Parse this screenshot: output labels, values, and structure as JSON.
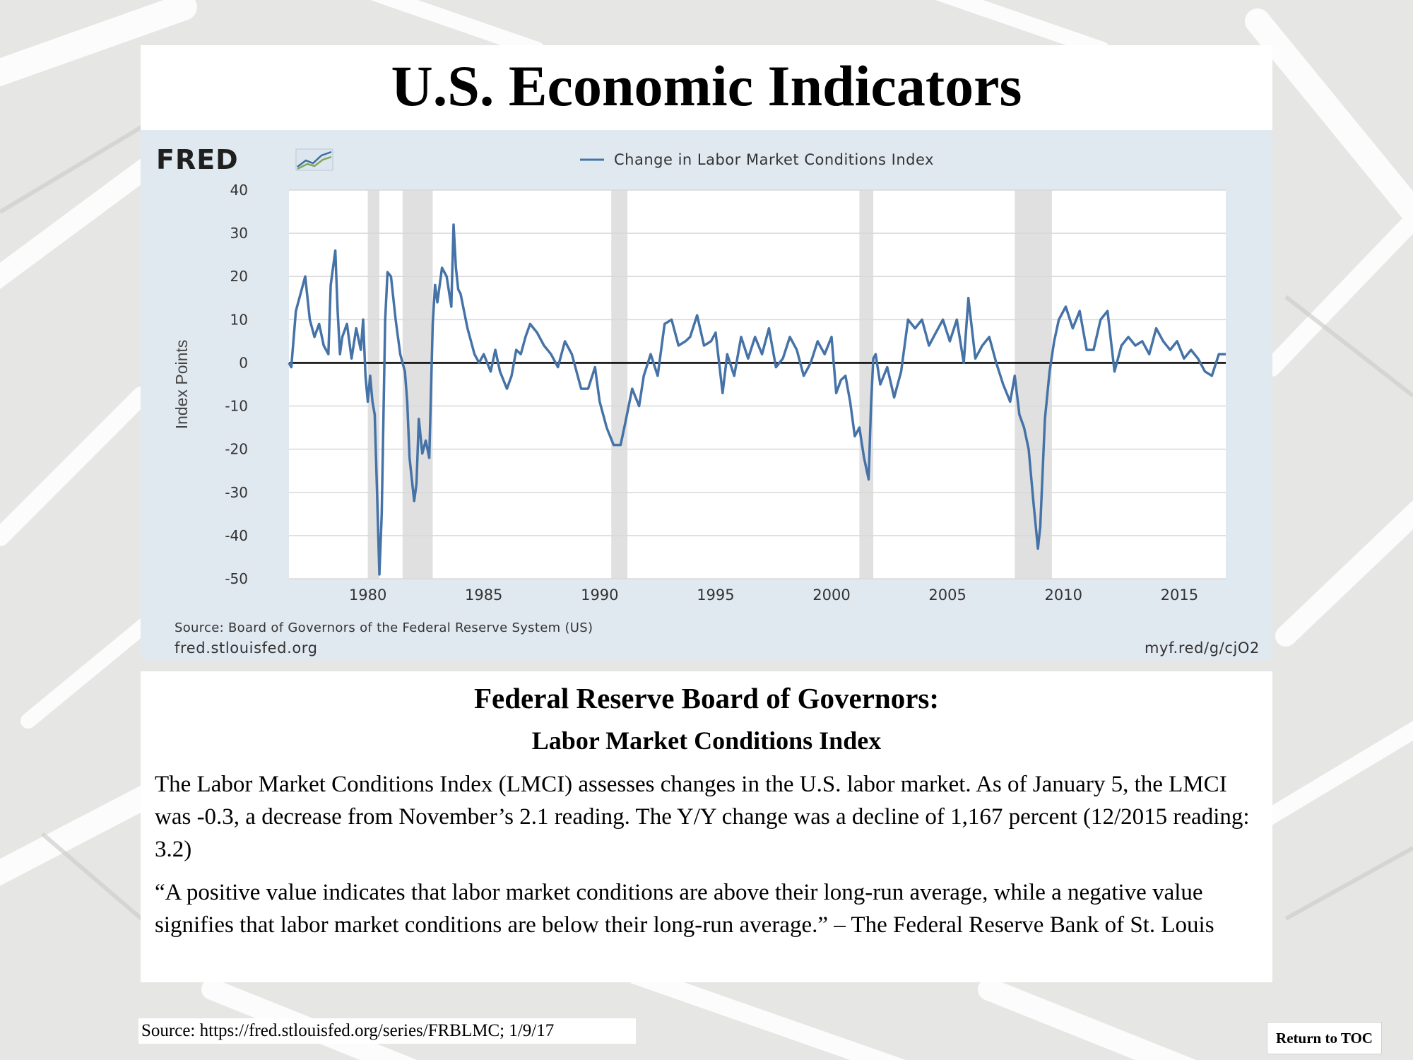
{
  "page": {
    "title": "U.S. Economic Indicators",
    "heading": "Federal Reserve Board of Governors:",
    "subheading": "Labor Market Conditions Index",
    "paragraph_1": "The Labor Market Conditions Index (LMCI) assesses changes in the U.S. labor market.  As of January 5, the LMCI was -0.3, a decrease from November’s 2.1 reading.  The Y/Y change was a decline of 1,167 percent (12/2015 reading: 3.2)",
    "paragraph_2": "“A positive value indicates that labor market conditions are above their long-run average, while a negative value signifies that labor market conditions are below their long-run average.” – The Federal Reserve Bank of St. Louis",
    "source": "Source: https://fred.stlouisfed.org/series/FRBLMC; 1/9/17",
    "toc_button": "Return to TOC"
  },
  "chart_header": {
    "logo_text": "FRED",
    "logo_icon": "fred-graph-icon",
    "source_line": "Source: Board of Governors of the Federal Reserve System (US)",
    "site": "fred.stlouisfed.org",
    "short_url": "myf.red/g/cjO2"
  },
  "colors": {
    "series": "#4572a7",
    "recession": "#e0e0e0",
    "chart_bg": "#e1e9f0",
    "zero_line": "#000000"
  },
  "chart_data": {
    "type": "line",
    "title": "",
    "xlabel": "",
    "ylabel": "Index Points",
    "xlim": [
      1976.6,
      2017.0
    ],
    "ylim": [
      -50,
      40
    ],
    "y_ticks": [
      40,
      30,
      20,
      10,
      0,
      -10,
      -20,
      -30,
      -40,
      -50
    ],
    "x_ticks": [
      1980,
      1985,
      1990,
      1995,
      2000,
      2005,
      2010,
      2015
    ],
    "grid": true,
    "legend": "top",
    "recessions": [
      [
        1980.0,
        1980.5
      ],
      [
        1981.5,
        1982.8
      ],
      [
        1990.5,
        1991.2
      ],
      [
        2001.2,
        2001.8
      ],
      [
        2007.9,
        2009.5
      ]
    ],
    "series": [
      {
        "name": "Change in Labor Market Conditions Index",
        "x": [
          1976.6,
          1976.7,
          1976.9,
          1977.1,
          1977.3,
          1977.5,
          1977.7,
          1977.9,
          1978.1,
          1978.3,
          1978.4,
          1978.6,
          1978.7,
          1978.8,
          1978.9,
          1979.1,
          1979.3,
          1979.5,
          1979.7,
          1979.8,
          1979.9,
          1980.0,
          1980.1,
          1980.2,
          1980.3,
          1980.4,
          1980.5,
          1980.6,
          1980.75,
          1980.85,
          1981.0,
          1981.2,
          1981.4,
          1981.6,
          1981.7,
          1981.8,
          1982.0,
          1982.1,
          1982.2,
          1982.35,
          1982.5,
          1982.65,
          1982.8,
          1982.9,
          1983.0,
          1983.2,
          1983.4,
          1983.6,
          1983.7,
          1983.8,
          1983.9,
          1984.0,
          1984.3,
          1984.6,
          1984.8,
          1985.0,
          1985.3,
          1985.5,
          1985.7,
          1986.0,
          1986.2,
          1986.4,
          1986.6,
          1986.8,
          1987.0,
          1987.3,
          1987.6,
          1987.9,
          1988.2,
          1988.5,
          1988.8,
          1989.2,
          1989.5,
          1989.8,
          1990.0,
          1990.3,
          1990.6,
          1990.9,
          1991.1,
          1991.4,
          1991.7,
          1991.9,
          1992.2,
          1992.5,
          1992.8,
          1993.1,
          1993.4,
          1993.7,
          1993.9,
          1994.2,
          1994.5,
          1994.8,
          1995.0,
          1995.3,
          1995.5,
          1995.8,
          1996.1,
          1996.4,
          1996.7,
          1997.0,
          1997.3,
          1997.6,
          1997.9,
          1998.2,
          1998.5,
          1998.8,
          1999.1,
          1999.4,
          1999.7,
          2000.0,
          2000.2,
          2000.4,
          2000.6,
          2000.8,
          2001.0,
          2001.2,
          2001.4,
          2001.6,
          2001.7,
          2001.8,
          2001.9,
          2002.1,
          2002.4,
          2002.7,
          2003.0,
          2003.3,
          2003.6,
          2003.9,
          2004.2,
          2004.5,
          2004.8,
          2005.1,
          2005.4,
          2005.7,
          2005.9,
          2006.2,
          2006.5,
          2006.8,
          2007.1,
          2007.4,
          2007.7,
          2007.9,
          2008.1,
          2008.3,
          2008.5,
          2008.7,
          2008.9,
          2009.0,
          2009.2,
          2009.4,
          2009.6,
          2009.8,
          2010.1,
          2010.4,
          2010.7,
          2011.0,
          2011.3,
          2011.6,
          2011.9,
          2012.2,
          2012.5,
          2012.8,
          2013.1,
          2013.4,
          2013.7,
          2014.0,
          2014.3,
          2014.6,
          2014.9,
          2015.2,
          2015.5,
          2015.8,
          2016.1,
          2016.4,
          2016.7,
          2017.0
        ],
        "y": [
          0,
          -1,
          12,
          16,
          20,
          10,
          6,
          9,
          4,
          2,
          18,
          26,
          12,
          2,
          6,
          9,
          1,
          8,
          3,
          10,
          -3,
          -9,
          -3,
          -9,
          -12,
          -30,
          -49,
          -35,
          10,
          21,
          20,
          10,
          2,
          -2,
          -9,
          -22,
          -32,
          -28,
          -13,
          -21,
          -18,
          -22,
          9,
          18,
          14,
          22,
          20,
          13,
          32,
          22,
          17,
          16,
          8,
          2,
          0,
          2,
          -2,
          3,
          -2,
          -6,
          -3,
          3,
          2,
          6,
          9,
          7,
          4,
          2,
          -1,
          5,
          2,
          -6,
          -6,
          -1,
          -9,
          -15,
          -19,
          -19,
          -14,
          -6,
          -10,
          -3,
          2,
          -3,
          9,
          10,
          4,
          5,
          6,
          11,
          4,
          5,
          7,
          -7,
          2,
          -3,
          6,
          1,
          6,
          2,
          8,
          -1,
          1,
          6,
          3,
          -3,
          0,
          5,
          2,
          6,
          -7,
          -4,
          -3,
          -9,
          -17,
          -15,
          -22,
          -27,
          -10,
          1,
          2,
          -5,
          -1,
          -8,
          -2,
          10,
          8,
          10,
          4,
          7,
          10,
          5,
          10,
          0,
          15,
          1,
          4,
          6,
          0,
          -5,
          -9,
          -3,
          -12,
          -15,
          -20,
          -32,
          -43,
          -38,
          -13,
          -2,
          5,
          10,
          13,
          8,
          12,
          3,
          3,
          10,
          12,
          -2,
          4,
          6,
          4,
          5,
          2,
          8,
          5,
          3,
          5,
          1,
          3,
          1,
          -2,
          -3,
          2,
          2
        ]
      }
    ]
  }
}
